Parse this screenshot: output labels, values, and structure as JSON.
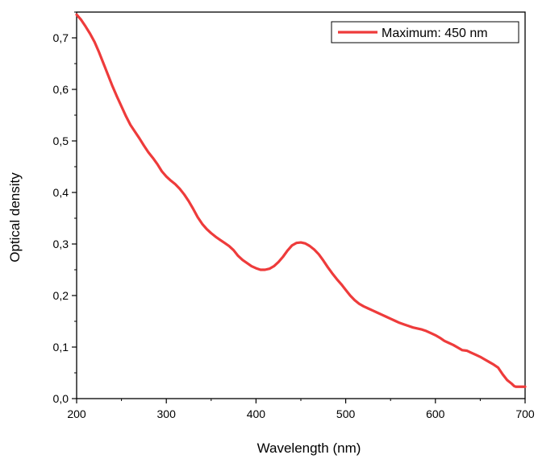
{
  "chart_data": {
    "type": "line",
    "xlabel": "Wavelength (nm)",
    "ylabel": "Optical density",
    "xlim": [
      200,
      700
    ],
    "ylim": [
      0.0,
      0.75
    ],
    "x_ticks": [
      {
        "value": 200,
        "label": "200"
      },
      {
        "value": 300,
        "label": "300"
      },
      {
        "value": 400,
        "label": "400"
      },
      {
        "value": 500,
        "label": "500"
      },
      {
        "value": 600,
        "label": "600"
      },
      {
        "value": 700,
        "label": "700"
      }
    ],
    "y_ticks": [
      {
        "value": 0.0,
        "label": "0,0"
      },
      {
        "value": 0.1,
        "label": "0,1"
      },
      {
        "value": 0.2,
        "label": "0,2"
      },
      {
        "value": 0.3,
        "label": "0,3"
      },
      {
        "value": 0.4,
        "label": "0,4"
      },
      {
        "value": 0.5,
        "label": "0,5"
      },
      {
        "value": 0.6,
        "label": "0,6"
      },
      {
        "value": 0.7,
        "label": "0,7"
      }
    ],
    "grid": false,
    "legend_position": "top-right",
    "series": [
      {
        "name": "Maximum: 450 nm",
        "color": "#ee3b3b",
        "points": [
          [
            200,
            0.745
          ],
          [
            205,
            0.735
          ],
          [
            210,
            0.722
          ],
          [
            215,
            0.708
          ],
          [
            220,
            0.692
          ],
          [
            225,
            0.672
          ],
          [
            230,
            0.65
          ],
          [
            235,
            0.628
          ],
          [
            240,
            0.606
          ],
          [
            245,
            0.586
          ],
          [
            250,
            0.567
          ],
          [
            255,
            0.548
          ],
          [
            260,
            0.531
          ],
          [
            265,
            0.518
          ],
          [
            270,
            0.505
          ],
          [
            275,
            0.491
          ],
          [
            280,
            0.478
          ],
          [
            285,
            0.467
          ],
          [
            290,
            0.455
          ],
          [
            295,
            0.441
          ],
          [
            300,
            0.431
          ],
          [
            305,
            0.423
          ],
          [
            310,
            0.416
          ],
          [
            315,
            0.407
          ],
          [
            320,
            0.396
          ],
          [
            325,
            0.383
          ],
          [
            330,
            0.368
          ],
          [
            335,
            0.352
          ],
          [
            340,
            0.339
          ],
          [
            345,
            0.329
          ],
          [
            350,
            0.321
          ],
          [
            355,
            0.314
          ],
          [
            360,
            0.308
          ],
          [
            365,
            0.302
          ],
          [
            370,
            0.296
          ],
          [
            375,
            0.288
          ],
          [
            380,
            0.277
          ],
          [
            385,
            0.269
          ],
          [
            390,
            0.263
          ],
          [
            395,
            0.257
          ],
          [
            400,
            0.253
          ],
          [
            405,
            0.25
          ],
          [
            410,
            0.25
          ],
          [
            415,
            0.252
          ],
          [
            420,
            0.257
          ],
          [
            425,
            0.265
          ],
          [
            430,
            0.275
          ],
          [
            435,
            0.287
          ],
          [
            440,
            0.297
          ],
          [
            445,
            0.302
          ],
          [
            450,
            0.303
          ],
          [
            455,
            0.301
          ],
          [
            460,
            0.296
          ],
          [
            465,
            0.289
          ],
          [
            470,
            0.28
          ],
          [
            475,
            0.268
          ],
          [
            480,
            0.255
          ],
          [
            485,
            0.243
          ],
          [
            490,
            0.232
          ],
          [
            495,
            0.222
          ],
          [
            500,
            0.211
          ],
          [
            505,
            0.2
          ],
          [
            510,
            0.191
          ],
          [
            515,
            0.184
          ],
          [
            520,
            0.179
          ],
          [
            525,
            0.175
          ],
          [
            530,
            0.171
          ],
          [
            535,
            0.167
          ],
          [
            540,
            0.163
          ],
          [
            545,
            0.159
          ],
          [
            550,
            0.155
          ],
          [
            555,
            0.151
          ],
          [
            560,
            0.147
          ],
          [
            565,
            0.144
          ],
          [
            570,
            0.141
          ],
          [
            575,
            0.138
          ],
          [
            580,
            0.136
          ],
          [
            585,
            0.134
          ],
          [
            590,
            0.131
          ],
          [
            595,
            0.127
          ],
          [
            600,
            0.123
          ],
          [
            605,
            0.118
          ],
          [
            610,
            0.112
          ],
          [
            615,
            0.108
          ],
          [
            620,
            0.104
          ],
          [
            625,
            0.099
          ],
          [
            630,
            0.094
          ],
          [
            635,
            0.093
          ],
          [
            640,
            0.089
          ],
          [
            645,
            0.085
          ],
          [
            650,
            0.081
          ],
          [
            655,
            0.076
          ],
          [
            660,
            0.071
          ],
          [
            665,
            0.066
          ],
          [
            670,
            0.06
          ],
          [
            675,
            0.047
          ],
          [
            680,
            0.036
          ],
          [
            685,
            0.029
          ],
          [
            688,
            0.024
          ],
          [
            690,
            0.023
          ],
          [
            695,
            0.023
          ],
          [
            700,
            0.023
          ]
        ]
      }
    ]
  }
}
